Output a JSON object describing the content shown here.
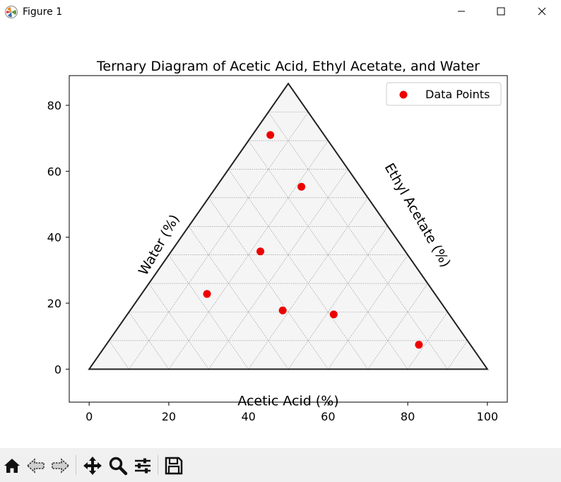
{
  "window": {
    "title": "Figure 1",
    "controls": [
      "minimize",
      "maximize",
      "close"
    ]
  },
  "toolbar": {
    "tools": [
      "home-icon",
      "back-icon",
      "forward-icon",
      "pan-icon",
      "zoom-icon",
      "configure-subplots-icon",
      "save-icon"
    ]
  },
  "chart_data": {
    "type": "scatter",
    "title": "Ternary Diagram of Acetic Acid, Ethyl Acetate, and Water",
    "xlabel": "Acetic Acid (%)",
    "side_labels": {
      "left": "Water (%)",
      "right": "Ethyl Acetate (%)"
    },
    "xlim": [
      -5,
      105
    ],
    "ylim": [
      -10,
      89
    ],
    "xticks": [
      0,
      20,
      40,
      60,
      80,
      100
    ],
    "yticks": [
      0,
      20,
      40,
      60,
      80
    ],
    "triangle_vertices": [
      [
        0,
        0
      ],
      [
        100,
        0
      ],
      [
        50,
        86.6
      ]
    ],
    "grid_step": 10,
    "legend": {
      "position": "upper right",
      "entries": [
        "Data Points"
      ]
    },
    "series": [
      {
        "name": "Data Points",
        "color": "#ee0000",
        "points": [
          {
            "x": 45.5,
            "y": 71.0
          },
          {
            "x": 53.3,
            "y": 55.3
          },
          {
            "x": 43.0,
            "y": 35.7
          },
          {
            "x": 29.6,
            "y": 22.8
          },
          {
            "x": 48.6,
            "y": 17.8
          },
          {
            "x": 61.4,
            "y": 16.6
          },
          {
            "x": 82.8,
            "y": 7.4
          }
        ]
      }
    ],
    "colors": {
      "triangle_fill": "#f5f5f5",
      "triangle_edge": "#222222",
      "grid": "#888888"
    }
  }
}
